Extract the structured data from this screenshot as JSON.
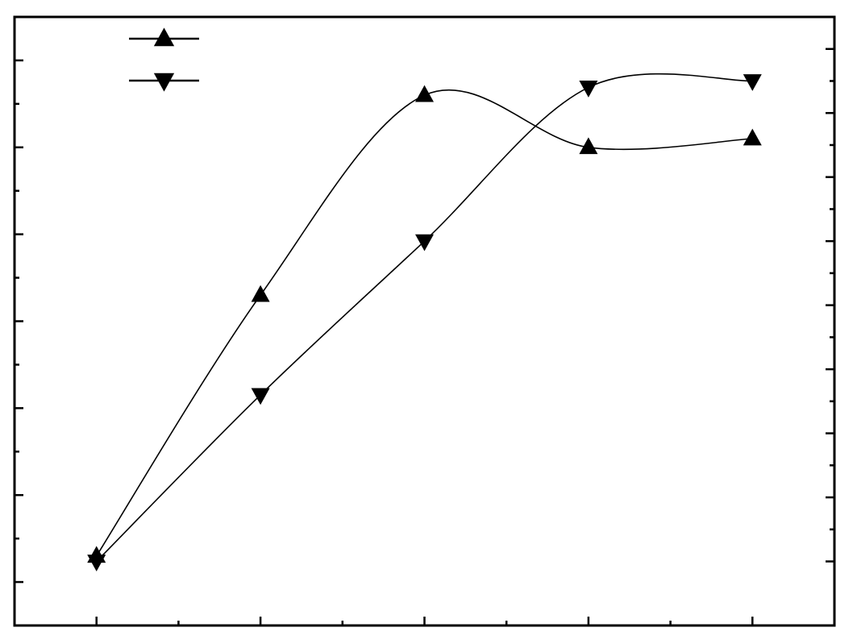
{
  "chart_data": {
    "type": "line",
    "title": "",
    "xlabel": "",
    "ylabel": "",
    "x": [
      0,
      1,
      2,
      3,
      4
    ],
    "xlim": [
      -0.5,
      4.5
    ],
    "ylim": [
      0,
      7
    ],
    "right_ylim": [
      0,
      9.5
    ],
    "x_major_ticks": [
      0,
      1,
      2,
      3,
      4
    ],
    "x_minor_ticks": [
      0.5,
      1.5,
      2.5,
      3.5
    ],
    "y_major_ticks": [
      0.5,
      1.5,
      2.5,
      3.5,
      4.5,
      5.5,
      6.5
    ],
    "y_minor_ticks": [
      1,
      2,
      3,
      4,
      5,
      6
    ],
    "right_y_major_ticks": [
      1,
      2,
      3,
      4,
      5,
      6,
      7,
      8,
      9
    ],
    "right_y_minor_ticks": [
      1.5,
      2.5,
      3.5,
      4.5,
      5.5,
      6.5,
      7.5,
      8.5
    ],
    "grid": false,
    "legend_position": "top-left",
    "colors": {
      "line": "#000000",
      "background": "#ffffff"
    },
    "series": [
      {
        "marker": "triangle-up",
        "axis": "left",
        "values": [
          0.8,
          3.8,
          6.1,
          5.5,
          5.6
        ]
      },
      {
        "marker": "triangle-down",
        "axis": "right",
        "values": [
          1.0,
          3.6,
          6.0,
          8.4,
          8.5
        ]
      }
    ]
  }
}
